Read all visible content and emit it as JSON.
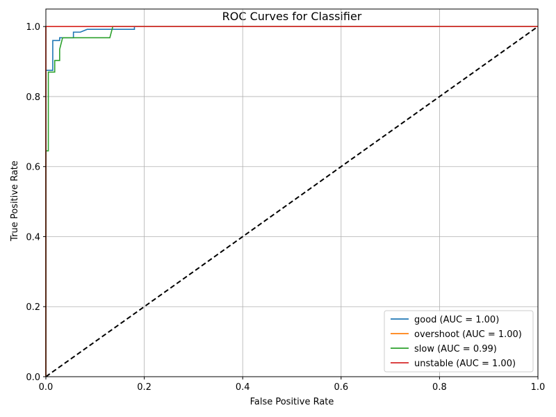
{
  "chart_data": {
    "type": "line",
    "title": "ROC Curves for Classifier",
    "xlabel": "False Positive Rate",
    "ylabel": "True Positive Rate",
    "xlim": [
      0.0,
      1.0
    ],
    "ylim": [
      0.0,
      1.05
    ],
    "x_ticks": [
      0.0,
      0.2,
      0.4,
      0.6,
      0.8,
      1.0
    ],
    "y_ticks": [
      0.0,
      0.2,
      0.4,
      0.6,
      0.8,
      1.0
    ],
    "x_tick_labels": [
      "0.0",
      "0.2",
      "0.4",
      "0.6",
      "0.8",
      "1.0"
    ],
    "y_tick_labels": [
      "0.0",
      "0.2",
      "0.4",
      "0.6",
      "0.8",
      "1.0"
    ],
    "grid": true,
    "legend_position": "lower-right",
    "reference_line": {
      "x": [
        0.0,
        1.0
      ],
      "y": [
        0.0,
        1.0
      ],
      "color": "#000000",
      "style": "dashed"
    },
    "series": [
      {
        "name": "good (AUC = 1.00)",
        "color": "#1f77b4",
        "x": [
          0.0,
          0.0,
          0.014,
          0.014,
          0.028,
          0.028,
          0.056,
          0.056,
          0.07,
          0.084,
          0.18,
          0.18,
          1.0
        ],
        "y": [
          0.0,
          0.875,
          0.875,
          0.96,
          0.96,
          0.968,
          0.968,
          0.984,
          0.984,
          0.992,
          0.992,
          1.0,
          1.0
        ]
      },
      {
        "name": "overshoot (AUC = 1.00)",
        "color": "#ff7f0e",
        "x": [
          0.0,
          0.0,
          1.0
        ],
        "y": [
          0.0,
          1.0,
          1.0
        ]
      },
      {
        "name": "slow (AUC = 0.99)",
        "color": "#2ca02c",
        "x": [
          0.0,
          0.0,
          0.005,
          0.005,
          0.018,
          0.018,
          0.028,
          0.028,
          0.034,
          0.13,
          0.136,
          0.136,
          1.0
        ],
        "y": [
          0.0,
          0.645,
          0.645,
          0.87,
          0.87,
          0.903,
          0.903,
          0.935,
          0.968,
          0.968,
          1.0,
          1.0,
          1.0
        ]
      },
      {
        "name": "unstable (AUC = 1.00)",
        "color": "#d62728",
        "x": [
          0.0,
          0.0,
          1.0
        ],
        "y": [
          0.0,
          1.0,
          1.0
        ]
      }
    ]
  }
}
